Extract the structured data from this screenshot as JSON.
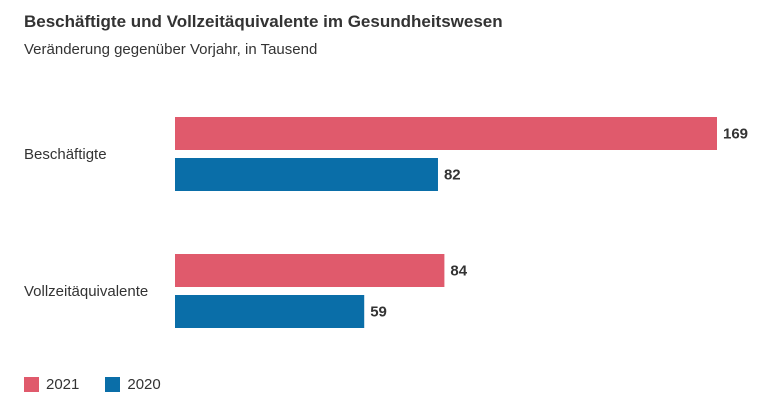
{
  "chart_data": {
    "type": "bar",
    "orientation": "horizontal",
    "title": "Beschäftigte und Vollzeitäquivalente im Gesundheitswesen",
    "subtitle": "Veränderung gegenüber Vorjahr, in Tausend",
    "categories": [
      "Beschäftigte",
      "Vollzeitäquivalente"
    ],
    "series": [
      {
        "name": "2021",
        "color": "#e05a6c",
        "values": [
          169,
          84
        ]
      },
      {
        "name": "2020",
        "color": "#0a6ea8",
        "values": [
          82,
          59
        ]
      }
    ],
    "xlim": [
      0,
      169
    ],
    "grid": false,
    "data_labels": true,
    "legend_position": "bottom-left"
  }
}
